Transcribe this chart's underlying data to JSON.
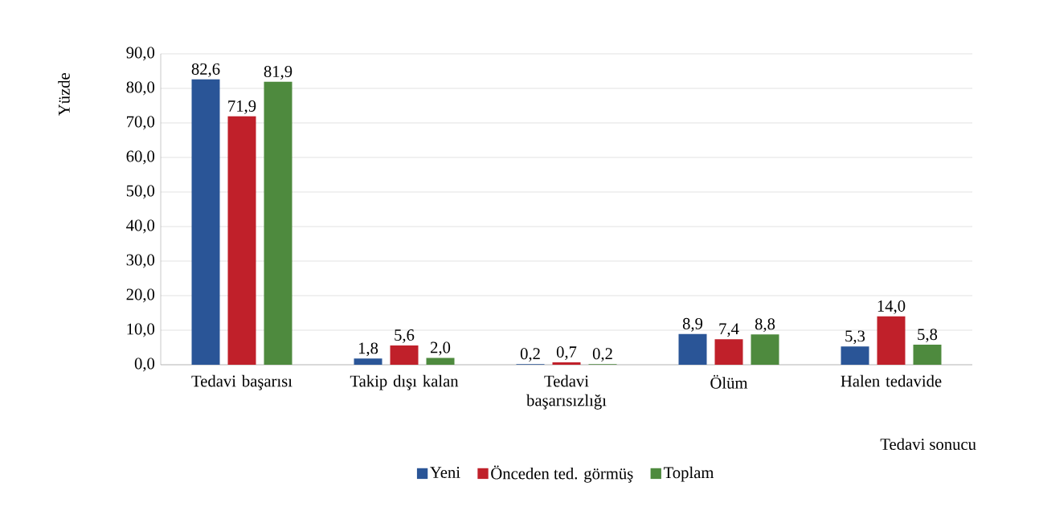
{
  "chart_data": {
    "type": "bar",
    "ylabel": "Yüzde",
    "xlabel": "Tedavi sonucu",
    "categories": [
      "Tedavi başarısı",
      "Takip dışı kalan",
      "Tedavi başarısızlığı",
      "Ölüm",
      "Halen tedavide"
    ],
    "series": [
      {
        "name": "Yeni",
        "color": "#2a5597",
        "values": [
          82.6,
          1.8,
          0.2,
          8.9,
          5.3
        ],
        "value_labels": [
          "82,6",
          "1,8",
          "0,2",
          "8,9",
          "5,3"
        ]
      },
      {
        "name": "Önceden ted. görmüş",
        "color": "#c0202a",
        "values": [
          71.9,
          5.6,
          0.7,
          7.4,
          14.0
        ],
        "value_labels": [
          "71,9",
          "5,6",
          "0,7",
          "7,4",
          "14,0"
        ]
      },
      {
        "name": "Toplam",
        "color": "#4e8a3e",
        "values": [
          81.9,
          2.0,
          0.2,
          8.8,
          5.8
        ],
        "value_labels": [
          "81,9",
          "2,0",
          "0,2",
          "8,8",
          "5,8"
        ]
      }
    ],
    "ylim": [
      0,
      90
    ],
    "yticks": [
      {
        "value": 0,
        "label": "0,0"
      },
      {
        "value": 10,
        "label": "10,0"
      },
      {
        "value": 20,
        "label": "20,0"
      },
      {
        "value": 30,
        "label": "30,0"
      },
      {
        "value": 40,
        "label": "40,0"
      },
      {
        "value": 50,
        "label": "50,0"
      },
      {
        "value": 60,
        "label": "60,0"
      },
      {
        "value": 70,
        "label": "70,0"
      },
      {
        "value": 80,
        "label": "80,0"
      },
      {
        "value": 90,
        "label": "90,0"
      }
    ],
    "grid": "y",
    "legend": "bottom"
  }
}
